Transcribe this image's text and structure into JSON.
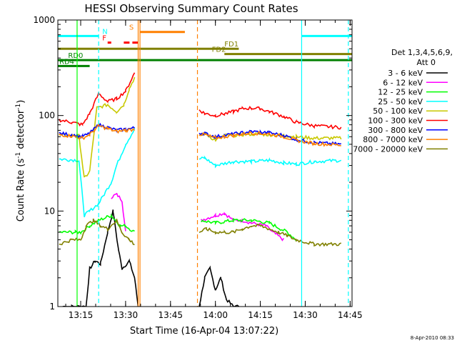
{
  "chart_data": {
    "type": "line",
    "title": "HESSI Observing Summary Count Rates",
    "xlabel": "Start Time (16-Apr-04 13:07:22)",
    "ylabel_main": "Count Rate (s",
    "ylabel_sup1": "-1",
    "ylabel_mid": " detector",
    "ylabel_sup2": "-1",
    "ylabel_end": ")",
    "yscale": "log",
    "ylim": [
      1,
      1000
    ],
    "xlim": [
      13.1228,
      14.7605
    ],
    "y_ticks": [
      {
        "v": 1,
        "label": "1"
      },
      {
        "v": 10,
        "label": "10"
      },
      {
        "v": 100,
        "label": "100"
      },
      {
        "v": 1000,
        "label": "1000"
      }
    ],
    "x_ticks": [
      {
        "v": 13.25,
        "label": "13:15"
      },
      {
        "v": 13.5,
        "label": "13:30"
      },
      {
        "v": 13.75,
        "label": "13:45"
      },
      {
        "v": 14.0,
        "label": "14:00"
      },
      {
        "v": 14.25,
        "label": "14:15"
      },
      {
        "v": 14.5,
        "label": "14:30"
      },
      {
        "v": 14.75,
        "label": "14:45"
      }
    ],
    "legend_header": [
      "Det 1,3,4,5,6,9,",
      "Att 0"
    ],
    "series": [
      {
        "name": "3 - 6 keV",
        "color": "#000000",
        "x": [
          13.15,
          13.2,
          13.25,
          13.28,
          13.3,
          13.33,
          13.36,
          13.4,
          13.43,
          13.46,
          13.48,
          13.52,
          13.55,
          13.57,
          13.91,
          13.94,
          13.97,
          14.0,
          14.03,
          14.06,
          14.1,
          14.13
        ],
        "y": [
          1,
          1,
          1,
          1,
          2.5,
          3,
          2.8,
          6,
          10,
          4,
          2.5,
          3,
          2,
          1,
          1,
          2,
          2.5,
          1.5,
          2,
          1.2,
          1,
          1
        ]
      },
      {
        "name": "6 - 12 keV",
        "color": "#ff00ff",
        "x": [
          13.42,
          13.45,
          13.48,
          13.5,
          13.92,
          14.0,
          14.05,
          14.1,
          14.15,
          14.2,
          14.28,
          14.32,
          14.38
        ],
        "y": [
          14,
          15,
          13,
          6,
          8,
          9,
          9.5,
          8,
          8,
          7.5,
          7,
          6,
          5
        ]
      },
      {
        "name": "12 - 25 keV",
        "color": "#00ff00",
        "x": [
          13.13,
          13.22,
          13.25,
          13.3,
          13.35,
          13.42,
          13.47,
          13.5,
          13.55,
          13.92,
          14.0,
          14.1,
          14.2,
          14.3,
          14.4,
          14.45,
          14.7
        ],
        "y": [
          6,
          6,
          6,
          7,
          8,
          9,
          7,
          7,
          6,
          8,
          7.5,
          8,
          8,
          7.5,
          6,
          5,
          5
        ]
      },
      {
        "name": "25 - 50 keV",
        "color": "#00ffff",
        "x": [
          13.13,
          13.24,
          13.27,
          13.3,
          13.35,
          13.42,
          13.45,
          13.5,
          13.55,
          13.91,
          13.94,
          14.0,
          14.1,
          14.2,
          14.3,
          14.38,
          14.45,
          14.55,
          14.7
        ],
        "y": [
          35,
          34,
          9,
          10,
          12,
          20,
          30,
          50,
          72,
          35,
          36,
          30,
          33,
          33,
          34,
          32,
          31,
          33,
          34
        ]
      },
      {
        "name": "50 - 100 keV",
        "color": "#c8c800",
        "x": [
          13.13,
          13.24,
          13.27,
          13.3,
          13.34,
          13.4,
          13.45,
          13.49,
          13.52,
          13.55,
          13.91,
          13.94,
          14.0,
          14.05,
          14.1,
          14.2,
          14.3,
          14.38,
          14.45,
          14.55,
          14.7
        ],
        "y": [
          62,
          62,
          22,
          26,
          120,
          130,
          110,
          130,
          190,
          250,
          60,
          65,
          55,
          62,
          62,
          64,
          63,
          62,
          60,
          58,
          58
        ]
      },
      {
        "name": "100 - 300 keV",
        "color": "#ff0000",
        "x": [
          13.13,
          13.2,
          13.26,
          13.3,
          13.35,
          13.4,
          13.45,
          13.5,
          13.55,
          13.91,
          13.94,
          14.0,
          14.05,
          14.1,
          14.15,
          14.2,
          14.25,
          14.3,
          14.38,
          14.45,
          14.55,
          14.7
        ],
        "y": [
          90,
          85,
          80,
          105,
          170,
          140,
          150,
          180,
          280,
          115,
          105,
          100,
          104,
          110,
          118,
          120,
          118,
          110,
          98,
          85,
          78,
          75
        ]
      },
      {
        "name": "300 - 800 keV",
        "color": "#0000ff",
        "x": [
          13.13,
          13.2,
          13.26,
          13.3,
          13.35,
          13.4,
          13.45,
          13.5,
          13.55,
          13.91,
          13.94,
          14.0,
          14.05,
          14.1,
          14.15,
          14.2,
          14.25,
          14.3,
          14.38,
          14.45,
          14.55,
          14.7
        ],
        "y": [
          65,
          63,
          60,
          65,
          80,
          75,
          70,
          72,
          74,
          66,
          65,
          60,
          62,
          64,
          66,
          68,
          67,
          66,
          62,
          56,
          52,
          50
        ]
      },
      {
        "name": "800 - 7000 keV",
        "color": "#ff8000",
        "x": [
          13.13,
          13.2,
          13.26,
          13.3,
          13.35,
          13.4,
          13.45,
          13.5,
          13.55,
          13.91,
          13.94,
          14.0,
          14.05,
          14.1,
          14.15,
          14.2,
          14.25,
          14.3,
          14.38,
          14.45,
          14.55,
          14.7
        ],
        "y": [
          63,
          61,
          58,
          63,
          78,
          73,
          68,
          70,
          72,
          64,
          63,
          58,
          60,
          62,
          64,
          66,
          65,
          64,
          60,
          55,
          51,
          49
        ]
      },
      {
        "name": "7000 - 20000 keV",
        "color": "#808000",
        "x": [
          13.13,
          13.2,
          13.25,
          13.28,
          13.32,
          13.36,
          13.4,
          13.45,
          13.48,
          13.52,
          13.55,
          13.91,
          13.95,
          14.0,
          14.05,
          14.1,
          14.15,
          14.2,
          14.25,
          14.3,
          14.35,
          14.4,
          14.45,
          14.55,
          14.7
        ],
        "y": [
          4.5,
          5,
          5,
          7,
          8,
          7,
          6.5,
          8,
          6,
          5,
          4.5,
          6,
          6.5,
          6,
          6,
          6,
          6.5,
          7,
          7,
          6.5,
          6,
          5.5,
          5,
          4.5,
          4.5
        ]
      }
    ],
    "state_bars": [
      {
        "label": "N",
        "color": "#00ffff",
        "y": 680,
        "segments": [
          [
            13.1228,
            13.35
          ],
          [
            14.48,
            14.7605
          ]
        ]
      },
      {
        "label": "S",
        "color": "#ff8000",
        "y": 750,
        "segments": [
          [
            13.58,
            13.83
          ]
        ]
      },
      {
        "label": "F",
        "color": "#ff0000",
        "y": 580,
        "segments": [
          [
            13.4,
            13.42
          ],
          [
            13.49,
            13.58
          ]
        ]
      },
      {
        "label": "FD1",
        "color": "#808000",
        "y": 500,
        "segments": [
          [
            13.1228,
            14.13
          ]
        ]
      },
      {
        "label": "FD2",
        "color": "#808000",
        "y": 440,
        "segments": [
          [
            14.05,
            14.7605
          ]
        ]
      },
      {
        "label": "RD0",
        "color": "#008000",
        "y": 380,
        "segments": [
          [
            13.1228,
            14.7605
          ]
        ]
      },
      {
        "label": "RD4",
        "color": "#008000",
        "y": 330,
        "segments": [
          [
            13.1228,
            13.3
          ]
        ]
      }
    ],
    "vertical_lines": [
      {
        "x": 13.35,
        "color": "#00ffff",
        "style": "dashed"
      },
      {
        "x": 13.57,
        "color": "#ff8000",
        "style": "solid"
      },
      {
        "x": 13.58,
        "color": "#ff8000",
        "style": "solid"
      },
      {
        "x": 13.9,
        "color": "#ff8000",
        "style": "dashed"
      },
      {
        "x": 14.48,
        "color": "#00ffff",
        "style": "solid"
      },
      {
        "x": 14.74,
        "color": "#00ffff",
        "style": "dashed"
      },
      {
        "x": 13.23,
        "color": "#00ff00",
        "style": "solid"
      }
    ],
    "footer": "8-Apr-2010 08:33"
  }
}
